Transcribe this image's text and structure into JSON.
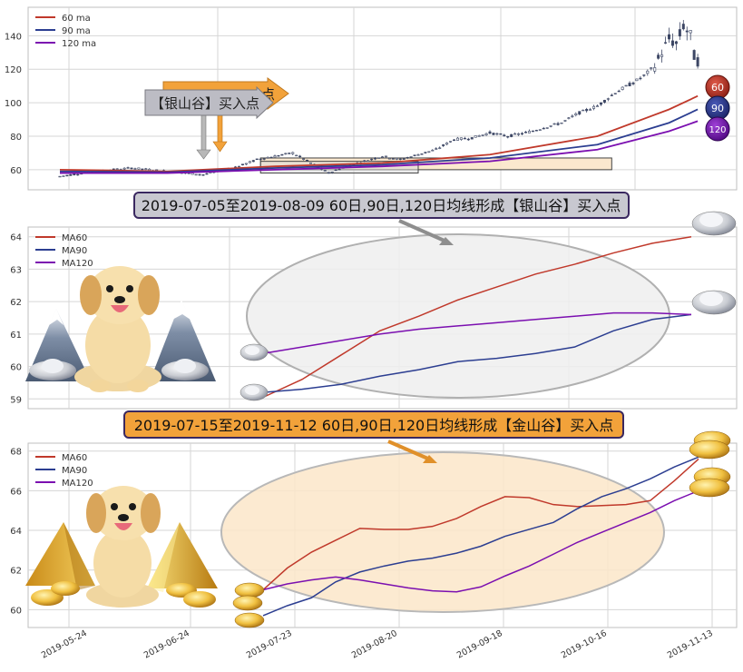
{
  "colors": {
    "ma60": "#c0392b",
    "ma90": "#2c3e91",
    "ma120": "#7b0fb0",
    "grid": "#d6d6d6",
    "frame": "#bfbfbf",
    "candle": "#3c4664",
    "silver_banner": "#c8c8d0",
    "gold_banner": "#f2a23a",
    "silver_ellipse": "#eeeeee",
    "gold_ellipse": "#fbe6c9",
    "badge60": "#c0392b",
    "badge90": "#2c3e91",
    "badge120": "#7b0fb0"
  },
  "chart_data": [
    {
      "type": "candlestick",
      "panel": "top",
      "ylim": [
        48,
        157
      ],
      "yticks": [
        60,
        80,
        100,
        120,
        140
      ],
      "xrange": [
        0,
        180
      ],
      "legend": [
        "60 ma",
        "90 ma",
        "120 ma"
      ],
      "legend_position": "top-left",
      "grid": true,
      "price_path": [
        [
          0,
          56
        ],
        [
          10,
          59
        ],
        [
          20,
          61
        ],
        [
          30,
          59
        ],
        [
          40,
          57
        ],
        [
          50,
          62
        ],
        [
          55,
          66
        ],
        [
          60,
          68
        ],
        [
          65,
          70
        ],
        [
          70,
          64
        ],
        [
          75,
          58
        ],
        [
          80,
          62
        ],
        [
          85,
          65
        ],
        [
          90,
          68
        ],
        [
          95,
          66
        ],
        [
          100,
          69
        ],
        [
          105,
          72
        ],
        [
          110,
          78
        ],
        [
          115,
          79
        ],
        [
          120,
          82
        ],
        [
          125,
          80
        ],
        [
          130,
          82
        ],
        [
          135,
          85
        ],
        [
          140,
          88
        ],
        [
          145,
          94
        ],
        [
          150,
          98
        ],
        [
          155,
          106
        ],
        [
          160,
          112
        ],
        [
          163,
          116
        ],
        [
          166,
          122
        ],
        [
          168,
          130
        ],
        [
          170,
          138
        ],
        [
          172,
          135
        ],
        [
          174,
          146
        ],
        [
          176,
          140
        ],
        [
          177,
          128
        ],
        [
          178,
          125
        ]
      ],
      "ma60": [
        [
          0,
          60
        ],
        [
          30,
          59
        ],
        [
          60,
          62
        ],
        [
          90,
          64
        ],
        [
          120,
          69
        ],
        [
          150,
          80
        ],
        [
          170,
          96
        ],
        [
          178,
          104
        ]
      ],
      "ma90": [
        [
          0,
          59
        ],
        [
          30,
          58.5
        ],
        [
          60,
          61
        ],
        [
          90,
          63
        ],
        [
          120,
          67
        ],
        [
          150,
          75
        ],
        [
          170,
          88
        ],
        [
          178,
          96
        ]
      ],
      "ma120": [
        [
          0,
          58
        ],
        [
          30,
          58
        ],
        [
          60,
          60
        ],
        [
          90,
          62
        ],
        [
          120,
          65
        ],
        [
          150,
          72
        ],
        [
          170,
          83
        ],
        [
          178,
          89
        ]
      ],
      "silver_box": [
        56,
        100,
        58,
        65
      ],
      "gold_box": [
        56,
        154,
        60,
        67
      ],
      "gold_label_partial": "点",
      "silver_label": "【银山谷】买入点",
      "badges": [
        "60",
        "90",
        "120"
      ]
    },
    {
      "type": "line",
      "panel": "middle",
      "title": "2019-07-05至2019-08-09 60日,90日,120日均线形成【银山谷】买入点",
      "legend": [
        "MA60",
        "MA90",
        "MA120"
      ],
      "legend_position": "top-left",
      "ylim": [
        58.7,
        64.3
      ],
      "yticks": [
        59,
        60,
        61,
        62,
        63,
        64
      ],
      "grid": true,
      "series": [
        {
          "name": "MA60",
          "values": [
            59.05,
            59.6,
            60.35,
            61.1,
            61.55,
            62.05,
            62.45,
            62.85,
            63.15,
            63.5,
            63.8,
            64.0
          ]
        },
        {
          "name": "MA90",
          "values": [
            59.2,
            59.3,
            59.45,
            59.7,
            59.9,
            60.15,
            60.25,
            60.4,
            60.6,
            61.1,
            61.45,
            61.6
          ]
        },
        {
          "name": "MA120",
          "values": [
            60.4,
            60.6,
            60.8,
            61.0,
            61.15,
            61.25,
            61.35,
            61.45,
            61.55,
            61.65,
            61.65,
            61.6
          ]
        }
      ]
    },
    {
      "type": "line",
      "panel": "bottom",
      "title": "2019-07-15至2019-11-12 60日,90日,120日均线形成【金山谷】买入点",
      "legend": [
        "MA60",
        "MA90",
        "MA120"
      ],
      "legend_position": "top-left",
      "ylim": [
        59.1,
        68.4
      ],
      "yticks": [
        60,
        62,
        64,
        66,
        68
      ],
      "x_tick_labels": [
        "2019-05-24",
        "2019-06-24",
        "2019-07-23",
        "2019-08-20",
        "2019-09-18",
        "2019-10-16",
        "2019-11-13"
      ],
      "grid": true,
      "series": [
        {
          "name": "MA60",
          "values": [
            61.0,
            62.1,
            62.9,
            63.5,
            64.1,
            64.05,
            64.05,
            64.2,
            64.6,
            65.2,
            65.7,
            65.65,
            65.3,
            65.2,
            65.25,
            65.3,
            65.5,
            66.5,
            67.6
          ]
        },
        {
          "name": "MA90",
          "values": [
            59.7,
            60.2,
            60.6,
            61.4,
            61.9,
            62.2,
            62.45,
            62.6,
            62.85,
            63.2,
            63.7,
            64.05,
            64.4,
            65.1,
            65.7,
            66.1,
            66.6,
            67.2,
            67.7
          ]
        },
        {
          "name": "MA120",
          "values": [
            61.0,
            61.3,
            61.5,
            61.65,
            61.5,
            61.3,
            61.1,
            60.95,
            60.9,
            61.15,
            61.7,
            62.2,
            62.8,
            63.4,
            63.9,
            64.4,
            64.9,
            65.5,
            66.0
          ]
        }
      ]
    }
  ]
}
